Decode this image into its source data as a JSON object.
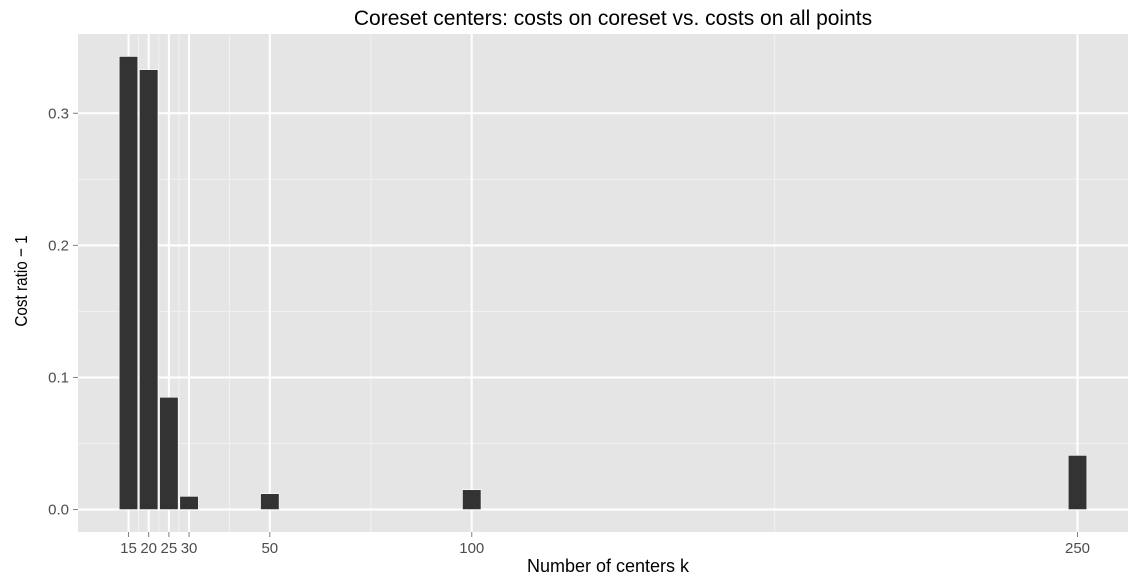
{
  "chart_data": {
    "type": "bar",
    "title": "Coreset centers: costs on coreset vs. costs on all points",
    "xlabel": "Number of centers k",
    "ylabel": "Cost ratio − 1",
    "x": [
      15,
      20,
      25,
      30,
      50,
      100,
      250
    ],
    "values": [
      0.343,
      0.333,
      0.085,
      0.01,
      0.012,
      0.015,
      0.041
    ],
    "x_ticks": [
      15,
      20,
      25,
      30,
      50,
      100,
      250
    ],
    "x_tick_labels": [
      "15",
      "20",
      "25",
      "30",
      "50",
      "100",
      "250"
    ],
    "y_ticks": [
      0.0,
      0.1,
      0.2,
      0.3
    ],
    "y_tick_labels": [
      "0.0",
      "0.1",
      "0.2",
      "0.3"
    ],
    "xlim": [
      2.5,
      262.5
    ],
    "ylim": [
      -0.017,
      0.36
    ],
    "grid": true,
    "colors": {
      "bar": "#333333",
      "panel": "#e5e5e5",
      "grid_major": "#ffffff",
      "grid_minor": "#f2f2f2"
    }
  }
}
